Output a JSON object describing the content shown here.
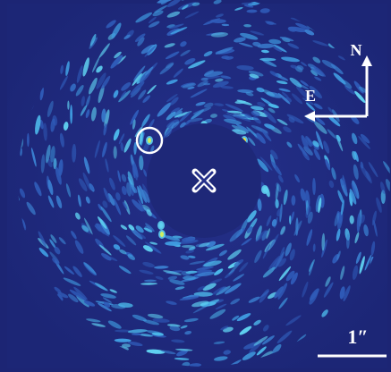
{
  "labels": {
    "north": "N",
    "east": "E",
    "scale": "1″"
  }
}
